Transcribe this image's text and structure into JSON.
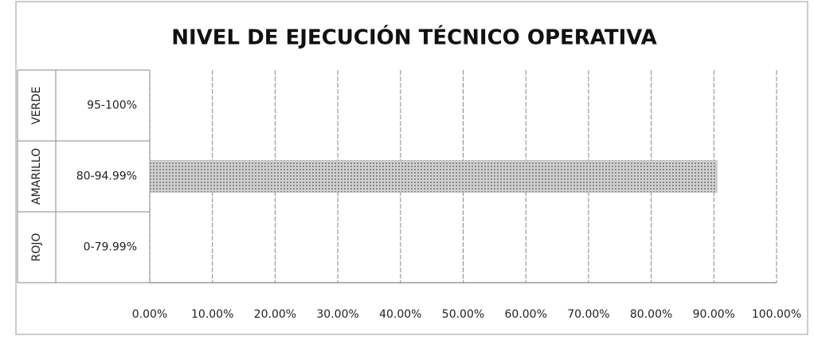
{
  "chart_data": {
    "type": "bar",
    "orientation": "horizontal",
    "title": "NIVEL DE EJECUCIÓN TÉCNICO OPERATIVA",
    "category_groups": [
      "VERDE",
      "AMARILLO",
      "ROJO"
    ],
    "categories": [
      "95-100%",
      "80-94.99%",
      "0-79.99%"
    ],
    "values": [
      null,
      90.5,
      null
    ],
    "color": "#a8a8a8",
    "xlim": [
      0,
      100
    ],
    "xticks": [
      {
        "value": 0,
        "label": "0.00%"
      },
      {
        "value": 10,
        "label": "10.00%"
      },
      {
        "value": 20,
        "label": "20.00%"
      },
      {
        "value": 30,
        "label": "30.00%"
      },
      {
        "value": 40,
        "label": "40.00%"
      },
      {
        "value": 50,
        "label": "50.00%"
      },
      {
        "value": 60,
        "label": "60.00%"
      },
      {
        "value": 70,
        "label": "70.00%"
      },
      {
        "value": 80,
        "label": "80.00%"
      },
      {
        "value": 90,
        "label": "90.00%"
      },
      {
        "value": 100,
        "label": "100.00%"
      }
    ],
    "grid": true
  }
}
